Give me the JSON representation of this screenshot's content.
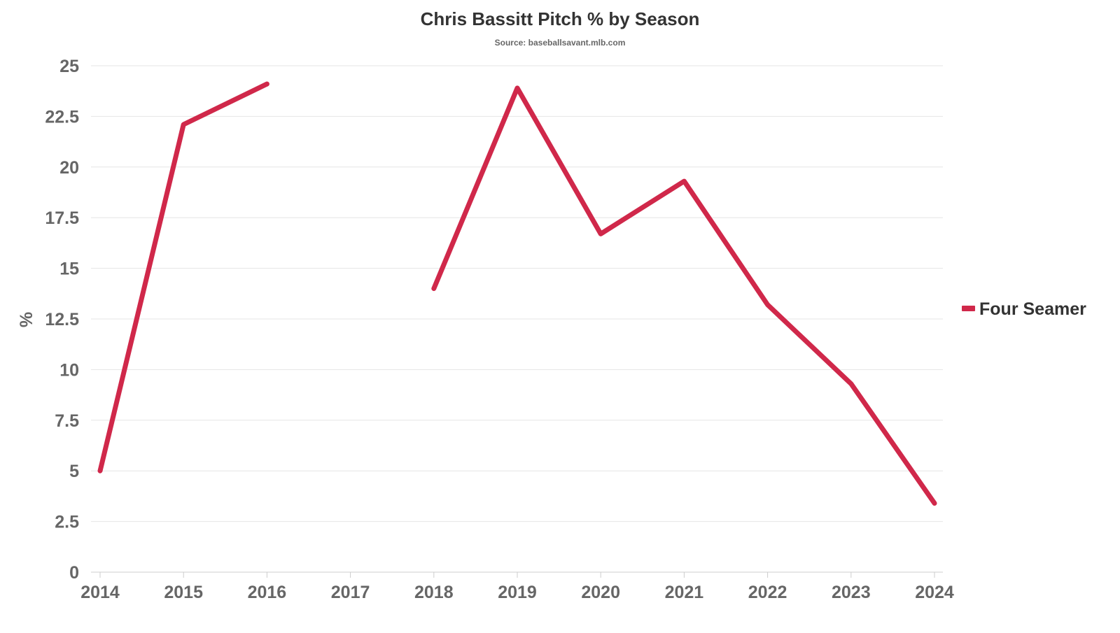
{
  "chart_data": {
    "type": "line",
    "title": "Chris Bassitt Pitch % by Season",
    "subtitle": "Source: baseballsavant.mlb.com",
    "xlabel": "",
    "ylabel": "%",
    "ylim": [
      0,
      25
    ],
    "yticks": [
      "0",
      "2.5",
      "5",
      "7.5",
      "10",
      "12.5",
      "15",
      "17.5",
      "20",
      "22.5",
      "25"
    ],
    "categories": [
      "2014",
      "2015",
      "2016",
      "2017",
      "2018",
      "2019",
      "2020",
      "2021",
      "2022",
      "2023",
      "2024"
    ],
    "grid": true,
    "legend_position": "right",
    "series": [
      {
        "name": "Four Seamer",
        "color": "#d0284a",
        "values": [
          5.0,
          22.1,
          24.1,
          null,
          14.0,
          23.9,
          16.7,
          19.3,
          13.2,
          9.3,
          3.4
        ]
      }
    ]
  }
}
